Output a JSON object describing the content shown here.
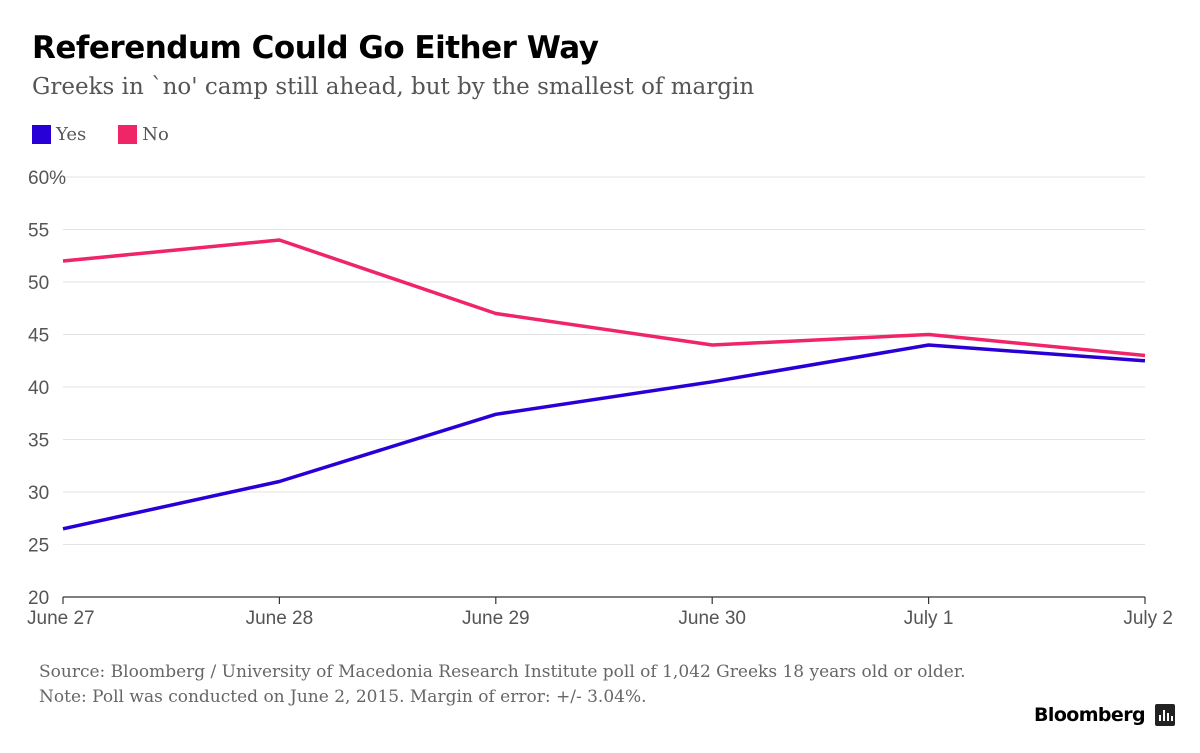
{
  "header": {
    "title": "Referendum Could Go Either Way",
    "subtitle": "Greeks in `no' camp still ahead, but by the smallest of margin"
  },
  "footer": {
    "source": "Source: Bloomberg / University of Macedonia Research Institute poll of 1,042 Greeks 18 years old or older.",
    "note": "Note: Poll was conducted on June 2, 2015. Margin of error: +/- 3.04%.",
    "brand": "Bloomberg"
  },
  "chart_data": {
    "type": "line",
    "title": "Referendum Could Go Either Way",
    "subtitle": "Greeks in `no' camp still ahead, but by the smallest of margin",
    "categories": [
      "June 27",
      "June 28",
      "June 29",
      "June 30",
      "July 1",
      "July 2"
    ],
    "y_ticks": [
      "60%",
      "55",
      "50",
      "45",
      "40",
      "35",
      "30",
      "25",
      "20"
    ],
    "ylim": [
      20,
      60
    ],
    "grid": true,
    "legend_placement": "top-left",
    "series": [
      {
        "name": "Yes",
        "color": "#2800d7",
        "values": [
          26.5,
          31,
          37.4,
          40.5,
          44,
          42.5
        ]
      },
      {
        "name": "No",
        "color": "#f02568",
        "values": [
          52,
          54,
          47,
          44,
          45,
          43
        ]
      }
    ]
  }
}
